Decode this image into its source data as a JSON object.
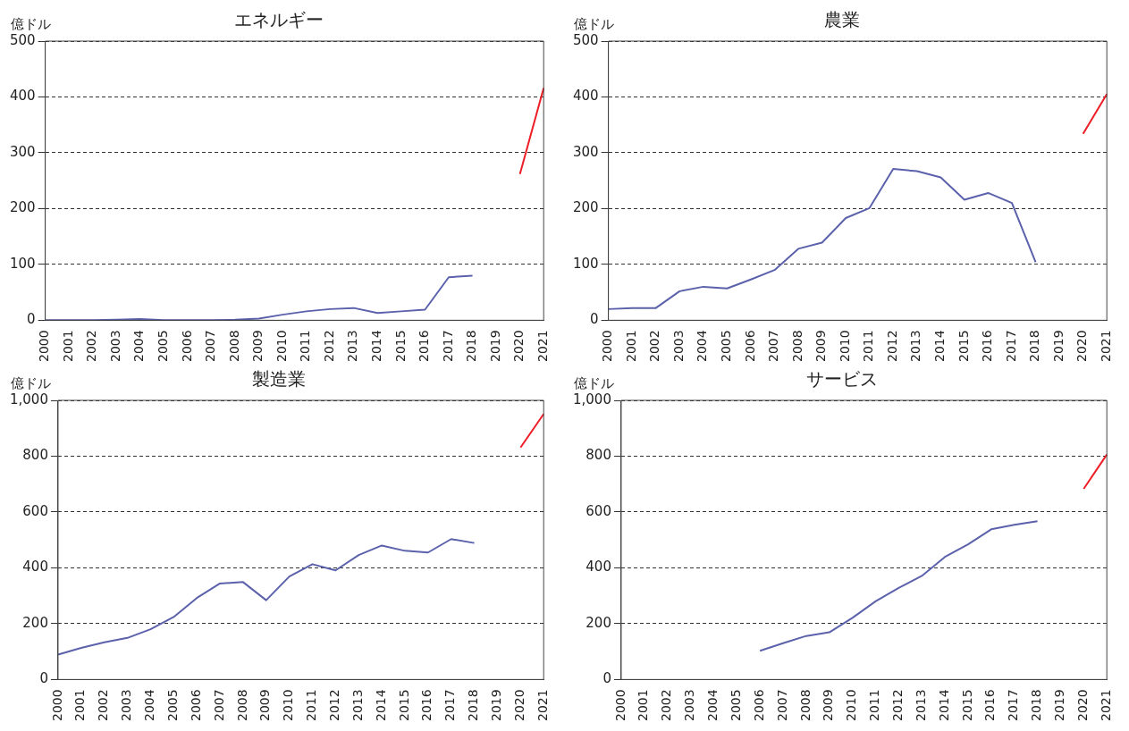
{
  "chart_data": [
    {
      "type": "line",
      "title": "エネルギー",
      "ylabel": "億ドル",
      "categories": [
        "2000",
        "2001",
        "2002",
        "2003",
        "2004",
        "2005",
        "2006",
        "2007",
        "2008",
        "2009",
        "2010",
        "2011",
        "2012",
        "2013",
        "2014",
        "2015",
        "2016",
        "2017",
        "2018",
        "2019",
        "2020",
        "2021"
      ],
      "ylim": [
        0,
        500
      ],
      "yticks": [
        0,
        100,
        200,
        300,
        400,
        500
      ],
      "grid": "y",
      "legend": false,
      "marker": "none",
      "line_style": "solid",
      "series": [
        {
          "color": "#5b62ab",
          "values": [
            0,
            0,
            0,
            1,
            2,
            0,
            0,
            0,
            1,
            3,
            10,
            16,
            20,
            22,
            13,
            16,
            19,
            77,
            80,
            null,
            null,
            null
          ]
        },
        {
          "color": "#ee1c25",
          "values": [
            null,
            null,
            null,
            null,
            null,
            null,
            null,
            null,
            null,
            null,
            null,
            null,
            null,
            null,
            null,
            null,
            null,
            null,
            null,
            null,
            262,
            416
          ]
        }
      ]
    },
    {
      "type": "line",
      "title": "農業",
      "ylabel": "億ドル",
      "categories": [
        "2000",
        "2001",
        "2002",
        "2003",
        "2004",
        "2005",
        "2006",
        "2007",
        "2008",
        "2009",
        "2010",
        "2011",
        "2012",
        "2013",
        "2014",
        "2015",
        "2016",
        "2017",
        "2018",
        "2019",
        "2020",
        "2021"
      ],
      "ylim": [
        0,
        500
      ],
      "yticks": [
        0,
        100,
        200,
        300,
        400,
        500
      ],
      "grid": "y",
      "legend": false,
      "marker": "none",
      "line_style": "solid",
      "series": [
        {
          "color": "#5b62ab",
          "values": [
            20,
            22,
            22,
            52,
            60,
            57,
            73,
            90,
            128,
            139,
            183,
            201,
            271,
            267,
            256,
            216,
            228,
            210,
            104,
            null,
            null,
            null
          ]
        },
        {
          "color": "#ee1c25",
          "values": [
            null,
            null,
            null,
            null,
            null,
            null,
            null,
            null,
            null,
            null,
            null,
            null,
            null,
            null,
            null,
            null,
            null,
            null,
            null,
            null,
            334,
            405
          ]
        }
      ]
    },
    {
      "type": "line",
      "title": "製造業",
      "ylabel": "億ドル",
      "categories": [
        "2000",
        "2001",
        "2002",
        "2003",
        "2004",
        "2005",
        "2006",
        "2007",
        "2008",
        "2009",
        "2010",
        "2011",
        "2012",
        "2013",
        "2014",
        "2015",
        "2016",
        "2017",
        "2018",
        "2019",
        "2020",
        "2021"
      ],
      "ylim": [
        0,
        1000
      ],
      "yticks": [
        0,
        200,
        400,
        600,
        800,
        {
          "value": 1000,
          "label": "1,000"
        }
      ],
      "grid": "y",
      "legend": false,
      "marker": "none",
      "line_style": "solid",
      "series": [
        {
          "color": "#5b62ab",
          "values": [
            89,
            113,
            133,
            149,
            180,
            224,
            292,
            344,
            349,
            284,
            369,
            413,
            391,
            446,
            480,
            461,
            455,
            503,
            489,
            null,
            null,
            null
          ]
        },
        {
          "color": "#ee1c25",
          "values": [
            null,
            null,
            null,
            null,
            null,
            null,
            null,
            null,
            null,
            null,
            null,
            null,
            null,
            null,
            null,
            null,
            null,
            null,
            null,
            null,
            831,
            951
          ]
        }
      ]
    },
    {
      "type": "line",
      "title": "サービス",
      "ylabel": "億ドル",
      "categories": [
        "2000",
        "2001",
        "2002",
        "2003",
        "2004",
        "2005",
        "2006",
        "2007",
        "2008",
        "2009",
        "2010",
        "2011",
        "2012",
        "2013",
        "2014",
        "2015",
        "2016",
        "2017",
        "2018",
        "2019",
        "2020",
        "2021"
      ],
      "ylim": [
        0,
        1000
      ],
      "yticks": [
        0,
        200,
        400,
        600,
        800,
        {
          "value": 1000,
          "label": "1,000"
        }
      ],
      "grid": "y",
      "legend": false,
      "marker": "none",
      "line_style": "solid",
      "series": [
        {
          "color": "#5b62ab",
          "values": [
            null,
            null,
            null,
            null,
            null,
            null,
            103,
            130,
            156,
            169,
            221,
            280,
            328,
            371,
            439,
            484,
            538,
            554,
            567,
            null,
            null,
            null
          ]
        },
        {
          "color": "#ee1c25",
          "values": [
            null,
            null,
            null,
            null,
            null,
            null,
            null,
            null,
            null,
            null,
            null,
            null,
            null,
            null,
            null,
            null,
            null,
            null,
            null,
            null,
            683,
            806
          ]
        }
      ]
    }
  ]
}
